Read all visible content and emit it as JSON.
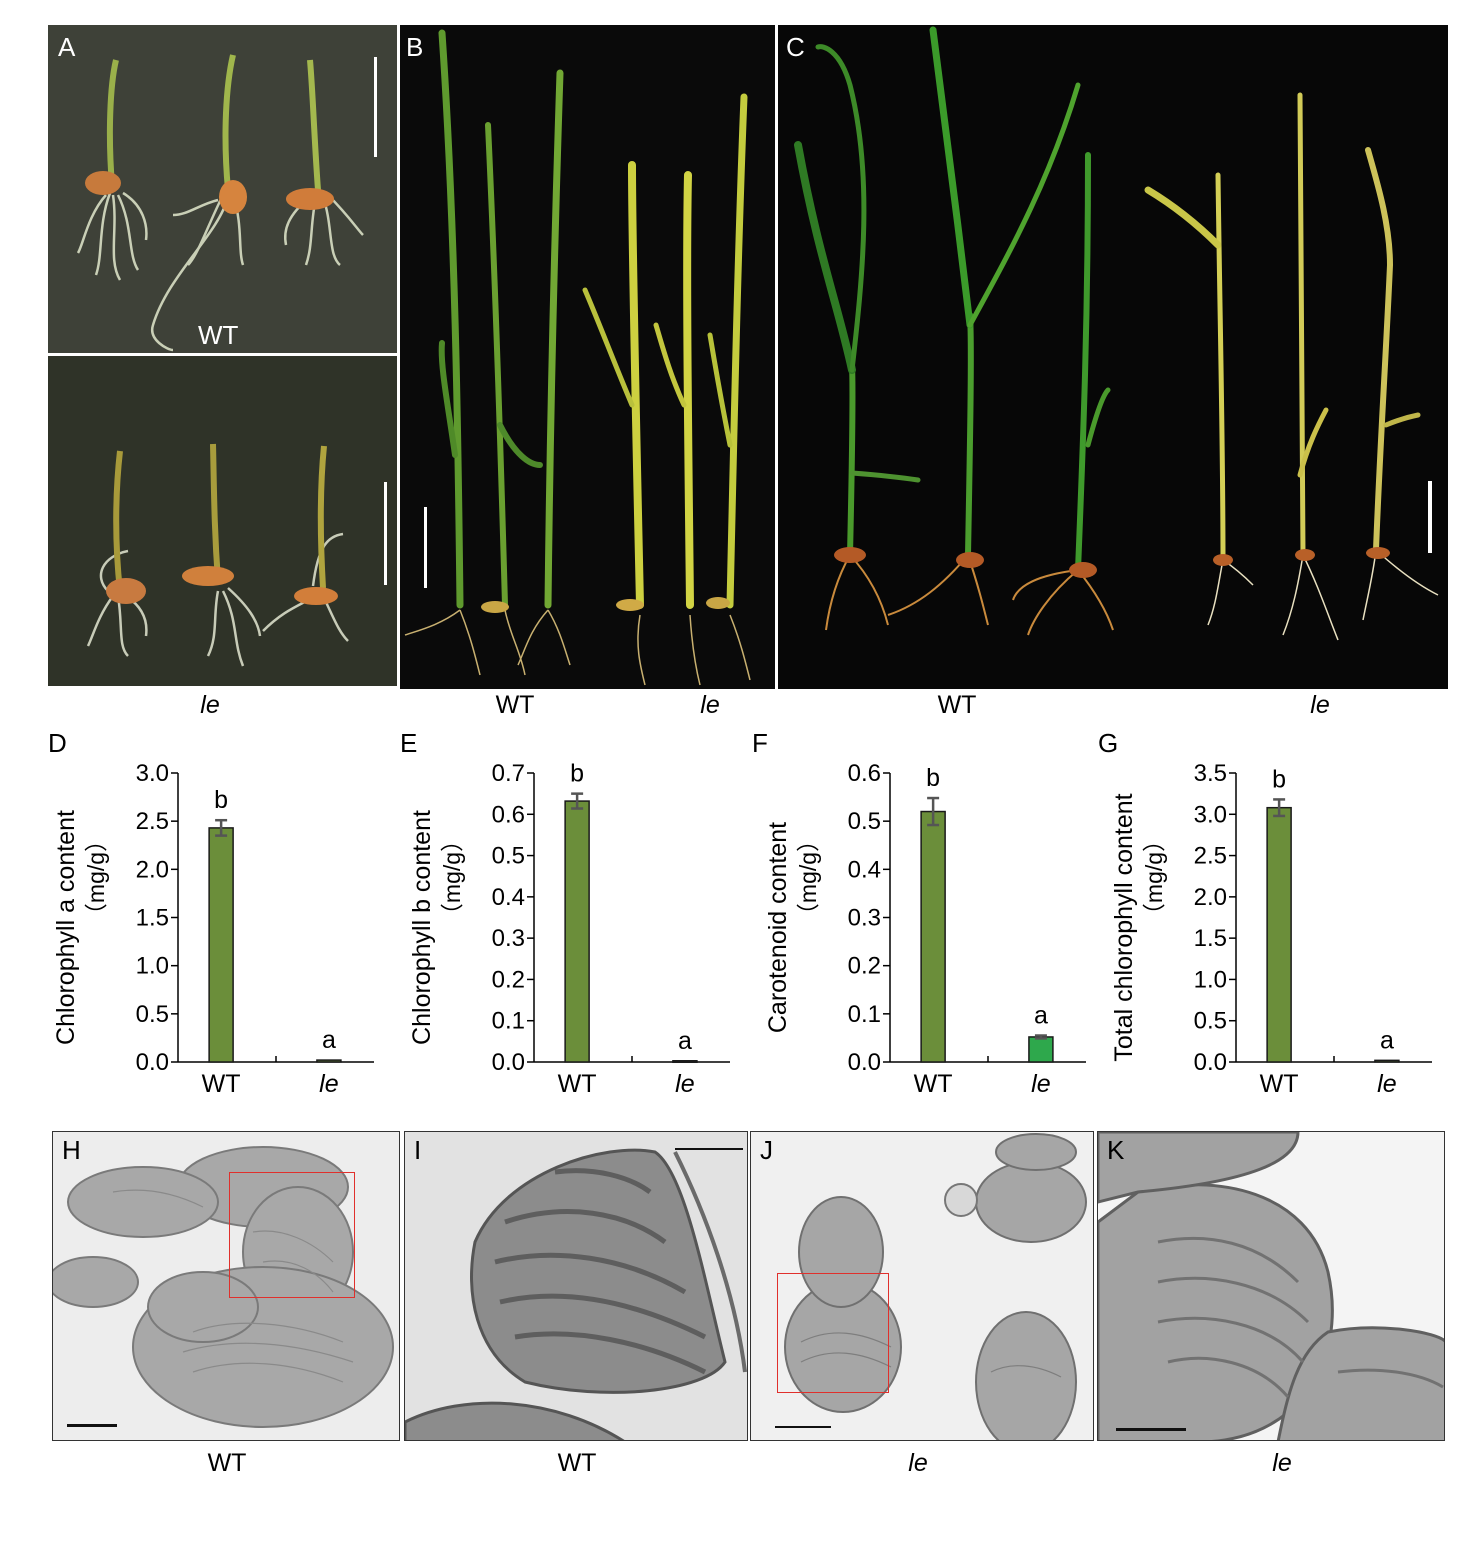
{
  "photos": {
    "A": {
      "label": "A",
      "top_caption": "WT",
      "bottom_caption": "le"
    },
    "B": {
      "label": "B",
      "caption_left": "WT",
      "caption_right": "le"
    },
    "C": {
      "label": "C",
      "caption_left": "WT",
      "caption_right": "le"
    },
    "H": {
      "label": "H",
      "caption": "WT"
    },
    "I": {
      "label": "I",
      "caption": "WT"
    },
    "J": {
      "label": "J",
      "caption": "le"
    },
    "K": {
      "label": "K",
      "caption": "le"
    }
  },
  "colors": {
    "bar_wt": "#6b8e3a",
    "bar_le_f": "#2ea84c",
    "error_bar": "#555555"
  },
  "chart_data": [
    {
      "panel": "D",
      "type": "bar",
      "categories": [
        "WT",
        "le"
      ],
      "values": [
        2.43,
        0.02
      ],
      "errors": [
        0.08,
        0.0
      ],
      "sig_letters": [
        "b",
        "a"
      ],
      "ylabel_line1": "Chlorophyll a content",
      "ylabel_line2": "（mg/g）",
      "ylim": [
        0,
        3.0
      ],
      "yticks": [
        "0.0",
        "0.5",
        "1.0",
        "1.5",
        "2.0",
        "2.5",
        "3.0"
      ]
    },
    {
      "panel": "E",
      "type": "bar",
      "categories": [
        "WT",
        "le"
      ],
      "values": [
        0.632,
        0.003
      ],
      "errors": [
        0.018,
        0.0
      ],
      "sig_letters": [
        "b",
        "a"
      ],
      "ylabel_line1": "Chlorophyll b content",
      "ylabel_line2": "（mg/g）",
      "ylim": [
        0,
        0.7
      ],
      "yticks": [
        "0.0",
        "0.1",
        "0.2",
        "0.3",
        "0.4",
        "0.5",
        "0.6",
        "0.7"
      ]
    },
    {
      "panel": "F",
      "type": "bar",
      "categories": [
        "WT",
        "le"
      ],
      "values": [
        0.52,
        0.052
      ],
      "errors": [
        0.028,
        0.003
      ],
      "sig_letters": [
        "b",
        "a"
      ],
      "ylabel_line1": "Carotenoid content",
      "ylabel_line2": "（mg/g）",
      "ylim": [
        0,
        0.6
      ],
      "yticks": [
        "0.0",
        "0.1",
        "0.2",
        "0.3",
        "0.4",
        "0.5",
        "0.6"
      ]
    },
    {
      "panel": "G",
      "type": "bar",
      "categories": [
        "WT",
        "le"
      ],
      "values": [
        3.08,
        0.02
      ],
      "errors": [
        0.1,
        0.0
      ],
      "sig_letters": [
        "b",
        "a"
      ],
      "ylabel_line1": "Total chlorophyll content",
      "ylabel_line2": "（mg/g）",
      "ylim": [
        0,
        3.5
      ],
      "yticks": [
        "0.0",
        "0.5",
        "1.0",
        "1.5",
        "2.0",
        "2.5",
        "3.0",
        "3.5"
      ]
    }
  ]
}
